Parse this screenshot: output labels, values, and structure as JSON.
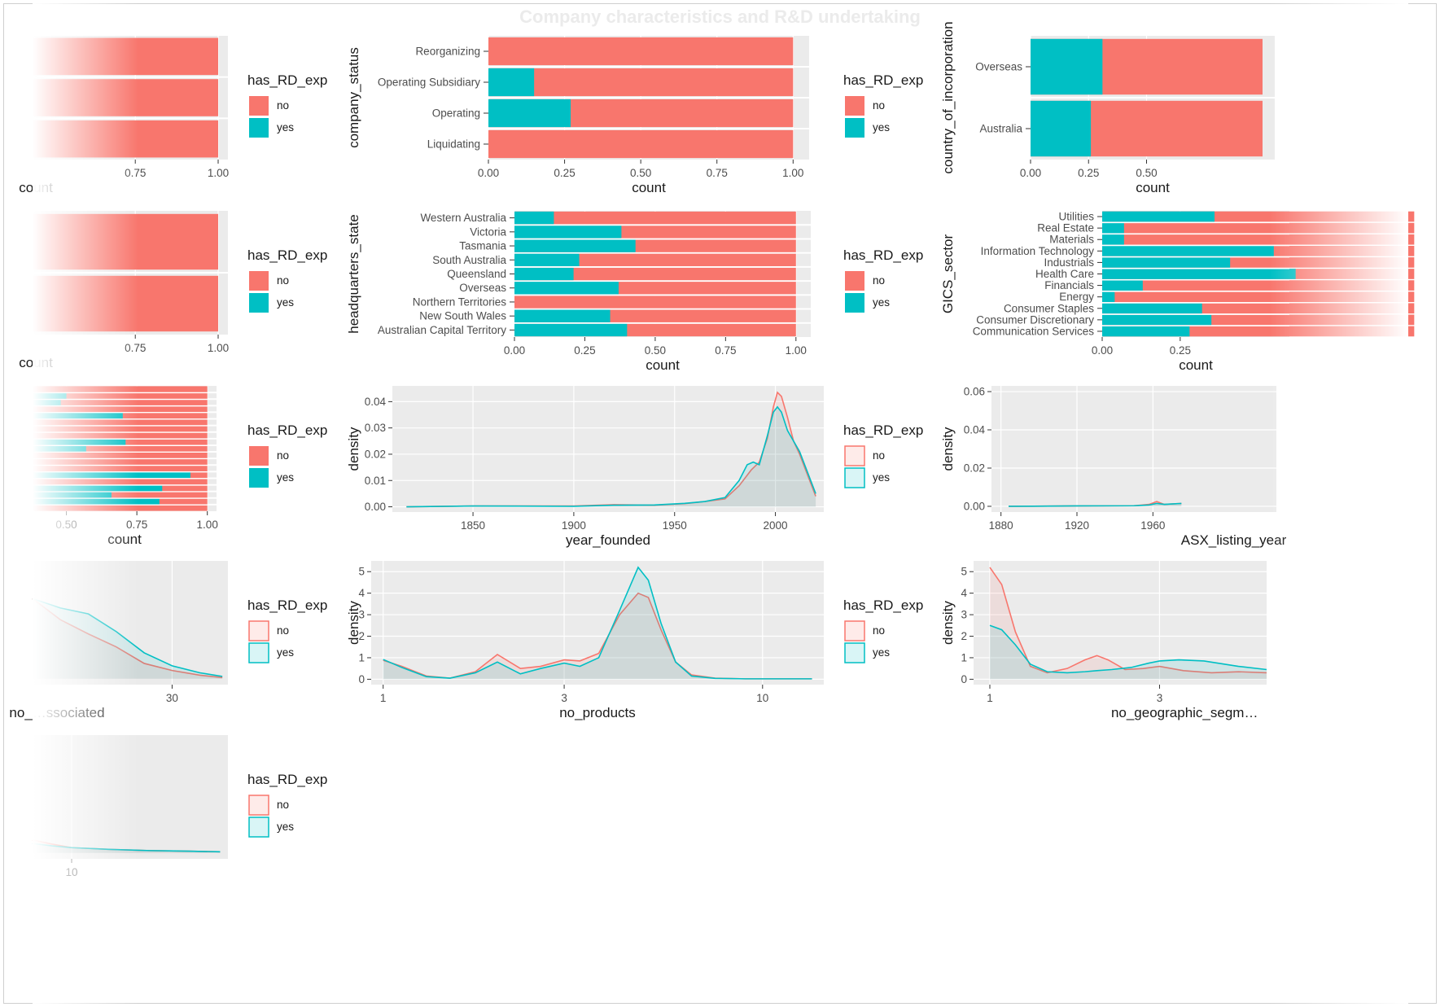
{
  "title": "Company characteristics and R&D undertaking",
  "colors": {
    "no": "#F8766D",
    "yes": "#00BFC4",
    "panel": "#EBEBEB",
    "grid": "#FFFFFF"
  },
  "chart_data": [
    {
      "id": "p1",
      "type": "bar",
      "orientation": "horizontal",
      "position": "fill",
      "xlabel": "count",
      "ylabel": "",
      "xtick_labels": [
        "0.75",
        "1.00"
      ],
      "xlim": [
        0,
        1
      ],
      "categories": [
        "",
        "",
        ""
      ],
      "series": [
        {
          "name": "no",
          "values": [
            1,
            1,
            1
          ]
        },
        {
          "name": "yes",
          "values": [
            0,
            0,
            0
          ]
        }
      ],
      "legend": {
        "title": "has_RD_exp",
        "labels": [
          "no",
          "yes"
        ]
      }
    },
    {
      "id": "p2",
      "type": "bar",
      "orientation": "horizontal",
      "position": "fill",
      "xlabel": "count",
      "ylabel": "company_status",
      "xtick_labels": [
        "0.00",
        "0.25",
        "0.50",
        "0.75",
        "1.00"
      ],
      "xlim": [
        0,
        1
      ],
      "categories": [
        "Liquidating",
        "Operating",
        "Operating Subsidiary",
        "Reorganizing"
      ],
      "series": [
        {
          "name": "yes",
          "values": [
            0,
            0.27,
            0.15,
            0
          ]
        },
        {
          "name": "no",
          "values": [
            1,
            0.73,
            0.85,
            1
          ]
        }
      ],
      "legend": {
        "title": "has_RD_exp",
        "labels": [
          "no",
          "yes"
        ]
      }
    },
    {
      "id": "p3",
      "type": "bar",
      "orientation": "horizontal",
      "position": "fill",
      "xlabel": "count",
      "ylabel": "country_of_incorporation",
      "xtick_labels": [
        "0.00",
        "0.25",
        "0.50"
      ],
      "xlim": [
        0,
        1
      ],
      "categories": [
        "Australia",
        "Overseas"
      ],
      "series": [
        {
          "name": "yes",
          "values": [
            0.26,
            0.31
          ]
        },
        {
          "name": "no",
          "values": [
            0.74,
            0.69
          ]
        }
      ]
    },
    {
      "id": "p4",
      "type": "bar",
      "orientation": "horizontal",
      "position": "fill",
      "xlabel": "count",
      "ylabel": "",
      "xtick_labels": [
        "0.75",
        "1.00"
      ],
      "xlim": [
        0,
        1
      ],
      "categories": [
        "",
        ""
      ],
      "series": [
        {
          "name": "no",
          "values": [
            1,
            1
          ]
        },
        {
          "name": "yes",
          "values": [
            0,
            0
          ]
        }
      ],
      "legend": {
        "title": "has_RD_exp",
        "labels": [
          "no",
          "yes"
        ]
      }
    },
    {
      "id": "p5",
      "type": "bar",
      "orientation": "horizontal",
      "position": "fill",
      "xlabel": "count",
      "ylabel": "headquarters_state",
      "xtick_labels": [
        "0.00",
        "0.25",
        "0.50",
        "0.75",
        "1.00"
      ],
      "xlim": [
        0,
        1
      ],
      "categories": [
        "Australian Capital Territory",
        "New South Wales",
        "Northern Territories",
        "Overseas",
        "Queensland",
        "South Australia",
        "Tasmania",
        "Victoria",
        "Western Australia"
      ],
      "series": [
        {
          "name": "yes",
          "values": [
            0.4,
            0.34,
            0,
            0.37,
            0.21,
            0.23,
            0.43,
            0.38,
            0.14
          ]
        },
        {
          "name": "no",
          "values": [
            0.6,
            0.66,
            1,
            0.63,
            0.79,
            0.77,
            0.57,
            0.62,
            0.86
          ]
        }
      ],
      "legend": {
        "title": "has_RD_exp",
        "labels": [
          "no",
          "yes"
        ]
      }
    },
    {
      "id": "p6",
      "type": "bar",
      "orientation": "horizontal",
      "position": "fill",
      "xlabel": "count",
      "ylabel": "GICS_sector",
      "xtick_labels": [
        "0.00",
        "0.25"
      ],
      "xlim": [
        0,
        1
      ],
      "categories": [
        "Communication Services",
        "Consumer Discretionary",
        "Consumer Staples",
        "Energy",
        "Financials",
        "Health Care",
        "Industrials",
        "Information Technology",
        "Materials",
        "Real Estate",
        "Utilities"
      ],
      "series": [
        {
          "name": "yes",
          "values": [
            0.28,
            0.35,
            0.32,
            0.04,
            0.13,
            0.62,
            0.41,
            0.55,
            0.07,
            0.07,
            0.36
          ]
        },
        {
          "name": "no",
          "values": [
            0.72,
            0.65,
            0.68,
            0.96,
            0.87,
            0.38,
            0.59,
            0.45,
            0.93,
            0.93,
            0.64
          ]
        }
      ]
    },
    {
      "id": "p7",
      "type": "bar",
      "orientation": "horizontal",
      "position": "fill",
      "xlabel": "count",
      "ylabel": "",
      "xtick_labels": [
        "0.50",
        "0.75",
        "1.00"
      ],
      "xlim": [
        0,
        1
      ],
      "categories": [
        "",
        "",
        "",
        "",
        "",
        "",
        "",
        "",
        "",
        "",
        "",
        "",
        "",
        "",
        "",
        "",
        "",
        "",
        ""
      ],
      "series": [
        {
          "name": "yes",
          "values": [
            0,
            0.83,
            0.66,
            0.84,
            0,
            0.94,
            0,
            0,
            0,
            0.57,
            0.71,
            0,
            0,
            0,
            0.7,
            0,
            0.48,
            0.5,
            0
          ]
        },
        {
          "name": "no",
          "values": [
            1,
            0.17,
            0.34,
            0.16,
            1,
            0.06,
            1,
            1,
            1,
            0.43,
            0.29,
            1,
            1,
            1,
            0.3,
            1,
            0.52,
            0.5,
            1
          ]
        }
      ],
      "legend": {
        "title": "has_RD_exp",
        "labels": [
          "no",
          "yes"
        ]
      }
    },
    {
      "id": "p8",
      "type": "area",
      "subtype": "density",
      "xlabel": "year_founded",
      "ylabel": "density",
      "xlim": [
        1810,
        2024
      ],
      "ylim": [
        -0.002,
        0.046
      ],
      "xtick_labels": [
        "1850",
        "1900",
        "1950",
        "2000"
      ],
      "ytick_labels": [
        "0.00",
        "0.01",
        "0.02",
        "0.03",
        "0.04"
      ],
      "series": [
        {
          "name": "no",
          "x": [
            1817,
            1850,
            1900,
            1920,
            1940,
            1955,
            1965,
            1975,
            1982,
            1988,
            1992,
            1996,
            1999,
            2001,
            2003,
            2006,
            2009,
            2012,
            2016,
            2020
          ],
          "y": [
            0.0,
            0.0003,
            0.0003,
            0.0008,
            0.0006,
            0.0012,
            0.002,
            0.003,
            0.008,
            0.014,
            0.017,
            0.026,
            0.038,
            0.0435,
            0.042,
            0.034,
            0.025,
            0.02,
            0.012,
            0.004
          ]
        },
        {
          "name": "yes",
          "x": [
            1817,
            1850,
            1900,
            1920,
            1940,
            1955,
            1965,
            1975,
            1982,
            1986,
            1989,
            1992,
            1996,
            1999,
            2001,
            2003,
            2006,
            2009,
            2012,
            2016,
            2020
          ],
          "y": [
            0.0,
            0.0003,
            0.0002,
            0.0006,
            0.0007,
            0.0013,
            0.002,
            0.0035,
            0.01,
            0.016,
            0.017,
            0.016,
            0.027,
            0.036,
            0.038,
            0.036,
            0.029,
            0.025,
            0.021,
            0.013,
            0.005
          ]
        }
      ],
      "legend": {
        "title": "has_RD_exp",
        "labels": [
          "no",
          "yes"
        ]
      }
    },
    {
      "id": "p9",
      "type": "area",
      "subtype": "density",
      "xlabel": "ASX_listing_year",
      "ylabel": "density",
      "xlim": [
        1875,
        2025
      ],
      "ylim": [
        -0.003,
        0.063
      ],
      "xtick_labels": [
        "1880",
        "1920",
        "1960"
      ],
      "ytick_labels": [
        "0.00",
        "0.02",
        "0.04",
        "0.06"
      ],
      "series": [
        {
          "name": "no",
          "x": [
            1884,
            1920,
            1950,
            1958,
            1962,
            1966,
            1975
          ],
          "y": [
            0.0,
            0.0002,
            0.0003,
            0.001,
            0.0025,
            0.001,
            0.0015
          ]
        },
        {
          "name": "yes",
          "x": [
            1884,
            1920,
            1950,
            1958,
            1962,
            1966,
            1975
          ],
          "y": [
            0.0,
            0.0002,
            0.0003,
            0.0007,
            0.0015,
            0.001,
            0.0015
          ]
        }
      ]
    },
    {
      "id": "p10",
      "type": "area",
      "subtype": "density",
      "xlabel": "no_…ssociated",
      "ylabel": "",
      "xlim": [
        5,
        40
      ],
      "ylim": [
        -0.05,
        1.0
      ],
      "xtick_labels": [
        "30"
      ],
      "series": [
        {
          "name": "no",
          "x": [
            5,
            10,
            15,
            20,
            25,
            30,
            35,
            39
          ],
          "y": [
            0.68,
            0.5,
            0.38,
            0.27,
            0.13,
            0.07,
            0.03,
            0.01
          ]
        },
        {
          "name": "yes",
          "x": [
            5,
            10,
            15,
            20,
            25,
            30,
            35,
            39
          ],
          "y": [
            0.68,
            0.6,
            0.55,
            0.4,
            0.22,
            0.11,
            0.05,
            0.02
          ]
        }
      ],
      "legend": {
        "title": "has_RD_exp",
        "labels": [
          "no",
          "yes"
        ]
      }
    },
    {
      "id": "p11",
      "type": "area",
      "subtype": "density",
      "xscale": "log",
      "xlabel": "no_products",
      "ylabel": "density",
      "xlim": [
        0.93,
        14.5
      ],
      "ylim": [
        -0.25,
        5.5
      ],
      "xtick_labels": [
        "1",
        "3",
        "10"
      ],
      "ytick_labels": [
        "0",
        "1",
        "2",
        "3",
        "4",
        "5"
      ],
      "series": [
        {
          "name": "no",
          "x": [
            1.0,
            1.12,
            1.3,
            1.5,
            1.75,
            2.0,
            2.3,
            2.6,
            3.0,
            3.3,
            3.7,
            4.2,
            4.7,
            5.0,
            5.4,
            5.9,
            6.5,
            7.5,
            9,
            11,
            13.5
          ],
          "y": [
            0.88,
            0.6,
            0.15,
            0.05,
            0.35,
            1.15,
            0.5,
            0.6,
            0.9,
            0.85,
            1.2,
            3.0,
            4.0,
            3.8,
            2.3,
            0.8,
            0.2,
            0.05,
            0.02,
            0.02,
            0.02
          ]
        },
        {
          "name": "yes",
          "x": [
            1.0,
            1.12,
            1.3,
            1.5,
            1.75,
            2.0,
            2.3,
            2.6,
            3.0,
            3.3,
            3.7,
            4.2,
            4.7,
            5.0,
            5.4,
            5.9,
            6.5,
            7.5,
            9,
            11,
            13.5
          ],
          "y": [
            0.92,
            0.55,
            0.12,
            0.05,
            0.3,
            0.8,
            0.25,
            0.5,
            0.75,
            0.6,
            1.0,
            3.2,
            5.2,
            4.6,
            2.6,
            0.8,
            0.15,
            0.04,
            0.02,
            0.02,
            0.02
          ]
        }
      ],
      "legend": {
        "title": "has_RD_exp",
        "labels": [
          "no",
          "yes"
        ]
      }
    },
    {
      "id": "p12",
      "type": "area",
      "subtype": "density",
      "xscale": "log",
      "xlabel": "no_geographic_segm…",
      "ylabel": "density",
      "xlim": [
        0.9,
        6.0
      ],
      "ylim": [
        -0.25,
        5.5
      ],
      "xtick_labels": [
        "1",
        "3"
      ],
      "ytick_labels": [
        "0",
        "1",
        "2",
        "3",
        "4",
        "5"
      ],
      "series": [
        {
          "name": "no",
          "x": [
            1.0,
            1.08,
            1.18,
            1.3,
            1.45,
            1.65,
            1.85,
            2.0,
            2.15,
            2.4,
            2.7,
            3.0,
            3.5,
            4.2,
            5.0,
            6.0
          ],
          "y": [
            5.2,
            4.4,
            2.2,
            0.6,
            0.3,
            0.5,
            0.9,
            1.1,
            0.9,
            0.45,
            0.5,
            0.6,
            0.4,
            0.3,
            0.35,
            0.3
          ]
        },
        {
          "name": "yes",
          "x": [
            1.0,
            1.08,
            1.18,
            1.3,
            1.45,
            1.65,
            1.85,
            2.0,
            2.2,
            2.5,
            2.8,
            3.0,
            3.4,
            4.0,
            5.0,
            6.0
          ],
          "y": [
            2.5,
            2.3,
            1.6,
            0.7,
            0.35,
            0.3,
            0.35,
            0.4,
            0.45,
            0.55,
            0.75,
            0.85,
            0.9,
            0.85,
            0.6,
            0.45
          ]
        }
      ]
    },
    {
      "id": "p13",
      "type": "area",
      "subtype": "density",
      "xlabel": "",
      "ylabel": "",
      "xlim": [
        0,
        50
      ],
      "ylim": [
        -0.01,
        0.2
      ],
      "xtick_labels": [
        "10"
      ],
      "series": [
        {
          "name": "no",
          "x": [
            0,
            5,
            10,
            20,
            30,
            40,
            48
          ],
          "y": [
            0.022,
            0.015,
            0.009,
            0.006,
            0.004,
            0.003,
            0.002
          ]
        },
        {
          "name": "yes",
          "x": [
            0,
            5,
            10,
            20,
            30,
            40,
            48
          ],
          "y": [
            0.016,
            0.012,
            0.009,
            0.006,
            0.004,
            0.003,
            0.002
          ]
        }
      ],
      "legend": {
        "title": "has_RD_exp",
        "labels": [
          "no",
          "yes"
        ]
      }
    }
  ]
}
